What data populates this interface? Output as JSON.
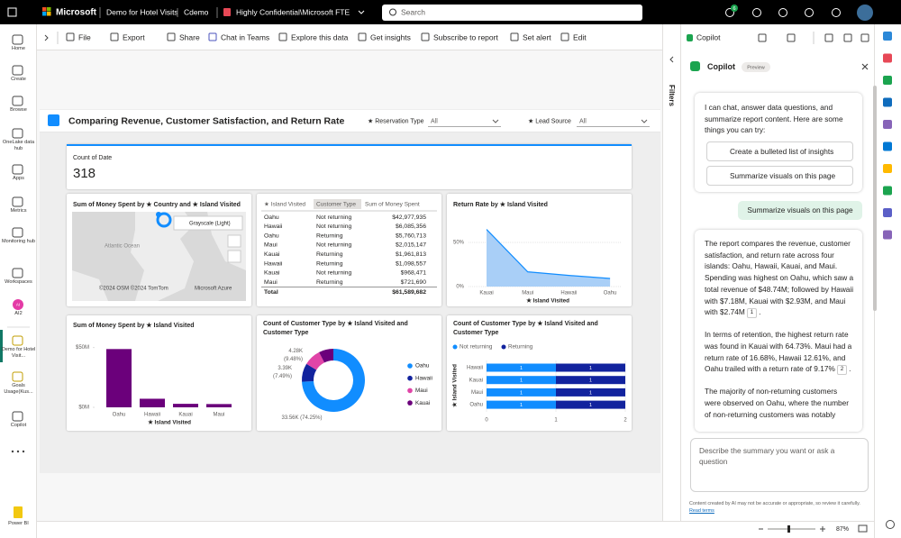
{
  "top_bar": {
    "brand": "Microsoft",
    "report_name": "Demo for Hotel Visits",
    "workspace": "Cdemo",
    "sensitivity": "Highly Confidential\\Microsoft FTE",
    "search_placeholder": "Search",
    "notification_count": "6"
  },
  "nav": [
    {
      "label": "Home"
    },
    {
      "label": "Create"
    },
    {
      "label": "Browse"
    },
    {
      "label": "OneLake data hub"
    },
    {
      "label": "Apps"
    },
    {
      "label": "Metrics"
    },
    {
      "label": "Monitoring hub"
    },
    {
      "label": "Workspaces"
    },
    {
      "label": "AI2",
      "badge": "AI"
    },
    {
      "label": "Demo for Hotel Visit..."
    },
    {
      "label": "Goals Usage(Kus..."
    },
    {
      "label": "Copilot"
    },
    {
      "label": "Power BI"
    }
  ],
  "toolbar": [
    "File",
    "Export",
    "Share",
    "Chat in Teams",
    "Explore this data",
    "Get insights",
    "Subscribe to report",
    "Set alert",
    "Edit"
  ],
  "report": {
    "title": "Comparing Revenue, Customer Satisfaction, and Return Rate",
    "slicers": [
      {
        "label": "★ Reservation Type",
        "value": "All"
      },
      {
        "label": "★ Lead Source",
        "value": "All"
      }
    ],
    "card": {
      "label": "Count of Date",
      "value": 318
    },
    "map": {
      "title": "Sum of Money Spent by ★ Country and ★ Island Visited",
      "ocean_label": "Atlantic Ocean",
      "style_tooltip": "Grayscale (Light)",
      "attribution": "©2024 OSM ©2024 TomTom",
      "provider": "Microsoft Azure"
    },
    "table": {
      "columns": [
        "★ Island Visited",
        "Customer Type",
        "Sum of Money Spent"
      ],
      "rows": [
        [
          "Oahu",
          "Not returning",
          "$42,977,935"
        ],
        [
          "Hawaii",
          "Not returning",
          "$6,085,356"
        ],
        [
          "Oahu",
          "Returning",
          "$5,760,713"
        ],
        [
          "Maui",
          "Not returning",
          "$2,015,147"
        ],
        [
          "Kauai",
          "Returning",
          "$1,961,813"
        ],
        [
          "Hawaii",
          "Returning",
          "$1,098,557"
        ],
        [
          "Kauai",
          "Not returning",
          "$968,471"
        ],
        [
          "Maui",
          "Returning",
          "$721,690"
        ]
      ],
      "total": [
        "Total",
        "$61,589,682"
      ]
    }
  },
  "chart_data": [
    {
      "type": "area",
      "title": "Return Rate by ★ Island Visited",
      "categories": [
        "Kauai",
        "Maui",
        "Hawaii",
        "Oahu"
      ],
      "values": [
        64.73,
        16.68,
        12.61,
        9.17
      ],
      "color": "#118dff",
      "fill": "#a9cff7",
      "ylim": [
        0,
        70
      ],
      "yticks": [
        {
          "value": 0,
          "label": "0%"
        },
        {
          "value": 50,
          "label": "50%"
        }
      ],
      "x_label": "★ Island Visited"
    },
    {
      "type": "bar",
      "title": "Sum of Money Spent by ★ Island Visited",
      "categories": [
        "Oahu",
        "Hawaii",
        "Kauai",
        "Maui"
      ],
      "values": [
        48.74,
        7.18,
        2.93,
        2.74
      ],
      "color": "#6b007b",
      "ylim": [
        0,
        52
      ],
      "yticks": [
        {
          "value": 0,
          "label": "$0M"
        },
        {
          "value": 50,
          "label": "$50M"
        }
      ],
      "x_label": "★ Island Visited"
    },
    {
      "type": "donut",
      "title": "Count of Customer Type by ★ Island Visited and Customer Type",
      "categories": [
        "Oahu",
        "Hawaii",
        "Maui",
        "Kauai"
      ],
      "values": [
        33.56,
        4.28,
        3.97,
        3.39
      ],
      "value_labels": [
        "33.56K (74.25%)",
        "4.28K (9.48%)",
        null,
        "3.39K (7.49%)"
      ],
      "colors": [
        "#118dff",
        "#12239e",
        "#e044a7",
        "#6b007b"
      ]
    },
    {
      "type": "stacked_barh",
      "title": "Count of Customer Type by ★ Island Visited and Customer Type",
      "categories": [
        "Hawaii",
        "Kauai",
        "Maui",
        "Oahu"
      ],
      "series": [
        {
          "name": "Not returning",
          "color": "#118dff",
          "values": [
            1,
            1,
            1,
            1
          ]
        },
        {
          "name": "Returning",
          "color": "#12239e",
          "values": [
            1,
            1,
            1,
            1
          ]
        }
      ],
      "xlim": [
        0,
        2
      ],
      "xticks": [
        0,
        1,
        2
      ],
      "y_label": "★ Island Visited"
    }
  ],
  "filters_pane": {
    "label": "Filters"
  },
  "copilot": {
    "tab": "Copilot",
    "title": "Copilot",
    "badge": "Preview",
    "intro": "I can chat, answer data questions, and summarize report content. Here are some things you can try:",
    "suggestions": [
      "Create a bulleted list of insights",
      "Summarize visuals on this page"
    ],
    "user_message": "Summarize visuals on this page",
    "response": [
      {
        "text": "The report compares the revenue, customer satisfaction, and return rate across four islands: Oahu, Hawaii, Kauai, and Maui. Spending was highest on Oahu, which saw a total revenue of $48.74M; followed by Hawaii with $7.18M, Kauai with $2.93M, and Maui with $2.74M",
        "citation": "1",
        "suffix": "."
      },
      {
        "text": "In terms of retention, the highest return rate was found in Kauai with 64.73%. Maui had a return rate of 16.68%, Hawaii 12.61%, and Oahu trailed with a return rate of 9.17%",
        "citation": "2",
        "suffix": "."
      },
      {
        "text": "The majority of non-returning customers were observed on Oahu, where the number of non-returning customers was notably"
      }
    ],
    "input_placeholder": "Describe the summary you want or ask a question",
    "disclaimer": "Content created by AI may not be accurate or appropriate, so review it carefully.",
    "terms_link": "Read terms"
  },
  "status_bar": {
    "zoom": "87%"
  }
}
